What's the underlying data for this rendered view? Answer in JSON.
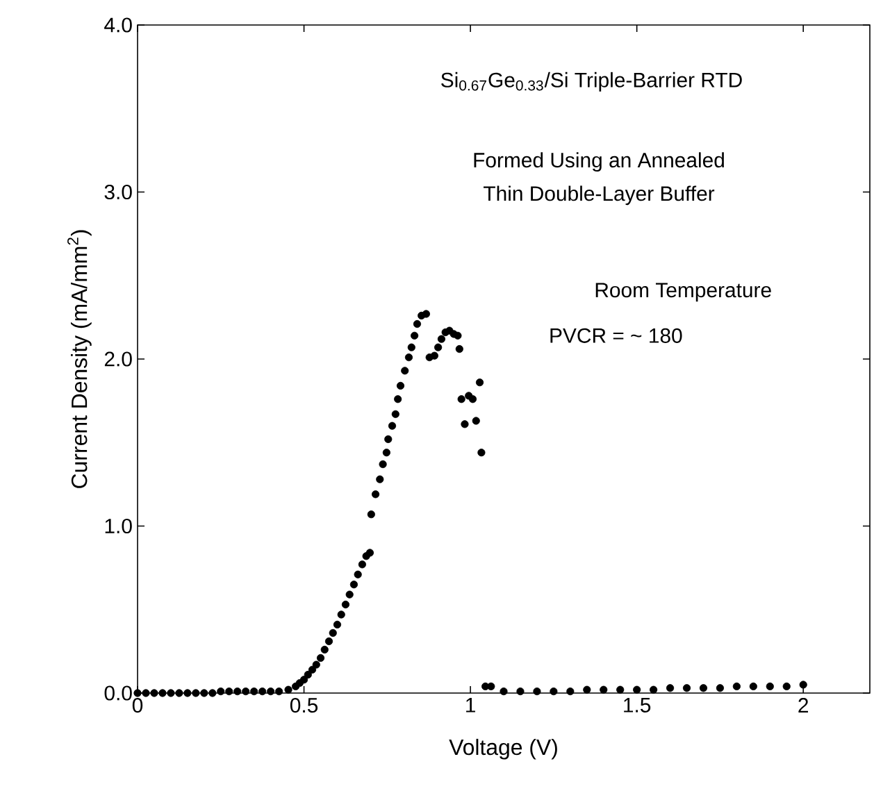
{
  "chart_data": {
    "type": "scatter",
    "xlabel": "Voltage (V)",
    "ylabel": "Current Density (mA/mm$^{2}$)",
    "annotations": [
      "Si$_{0.67}$Ge$_{0.33}$/Si Triple-Barrier RTD",
      "Formed Using an Annealed",
      "Thin Double-Layer Buffer",
      "Room Temperature",
      "PVCR = ~ 180"
    ],
    "x": [
      0,
      0.025,
      0.05,
      0.075,
      0.1,
      0.125,
      0.15,
      0.175,
      0.2,
      0.225,
      0.25,
      0.275,
      0.3,
      0.325,
      0.35,
      0.375,
      0.4,
      0.425,
      0.453,
      0.475,
      0.487,
      0.5,
      0.512,
      0.525,
      0.537,
      0.55,
      0.562,
      0.575,
      0.587,
      0.6,
      0.612,
      0.625,
      0.637,
      0.65,
      0.662,
      0.675,
      0.687,
      0.698,
      0.702,
      0.715,
      0.728,
      0.737,
      0.748,
      0.753,
      0.765,
      0.775,
      0.782,
      0.79,
      0.803,
      0.815,
      0.823,
      0.832,
      0.84,
      0.853,
      0.867,
      0.877,
      0.892,
      0.903,
      0.913,
      0.925,
      0.937,
      0.95,
      0.962,
      0.967,
      0.973,
      0.983,
      0.995,
      1.007,
      1.017,
      1.028,
      1.033,
      1.045,
      1.062,
      1.1,
      1.15,
      1.2,
      1.25,
      1.3,
      1.35,
      1.4,
      1.45,
      1.5,
      1.55,
      1.6,
      1.65,
      1.7,
      1.75,
      1.8,
      1.85,
      1.9,
      1.95,
      2.0
    ],
    "values": [
      0.0,
      0.0,
      0.0,
      0.0,
      0.0,
      0.0,
      0.0,
      0.0,
      0.0,
      0.0,
      0.01,
      0.01,
      0.01,
      0.01,
      0.01,
      0.01,
      0.01,
      0.01,
      0.02,
      0.04,
      0.06,
      0.08,
      0.11,
      0.14,
      0.17,
      0.21,
      0.26,
      0.31,
      0.36,
      0.41,
      0.47,
      0.53,
      0.59,
      0.65,
      0.71,
      0.77,
      0.82,
      0.84,
      1.07,
      1.19,
      1.28,
      1.37,
      1.44,
      1.52,
      1.6,
      1.67,
      1.76,
      1.84,
      1.93,
      2.01,
      2.07,
      2.14,
      2.21,
      2.26,
      2.27,
      2.01,
      2.02,
      2.07,
      2.12,
      2.16,
      2.17,
      2.15,
      2.14,
      2.06,
      1.76,
      1.61,
      1.78,
      1.76,
      1.63,
      1.86,
      1.44,
      0.04,
      0.04,
      0.01,
      0.01,
      0.01,
      0.01,
      0.01,
      0.02,
      0.02,
      0.02,
      0.02,
      0.02,
      0.03,
      0.03,
      0.03,
      0.03,
      0.04,
      0.04,
      0.04,
      0.04,
      0.05
    ],
    "color": "#000000",
    "marker": "circle",
    "xlim": [
      0,
      2.2
    ],
    "xticks": [
      0,
      0.5,
      1,
      1.5,
      2
    ],
    "ylim": [
      0,
      4.0
    ],
    "yticks": [
      {
        "value": 0,
        "label": "0.0"
      },
      {
        "value": 1,
        "label": "1.0"
      },
      {
        "value": 2,
        "label": "2.0"
      },
      {
        "value": 3,
        "label": "3.0"
      },
      {
        "value": 4,
        "label": "4.0"
      }
    ]
  }
}
